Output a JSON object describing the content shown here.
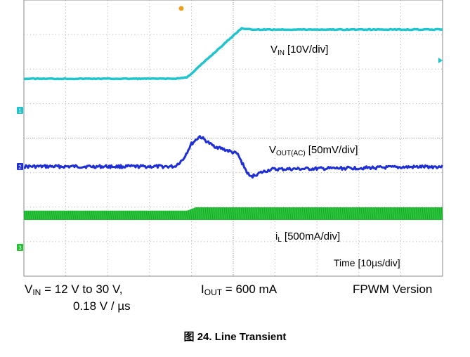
{
  "chart_data": {
    "type": "line",
    "x_unit": "µs",
    "x_range": [
      -19.5,
      30.5
    ],
    "grid": true,
    "divisions": {
      "x": 10,
      "y": 8
    },
    "channels": [
      {
        "id": "C1",
        "name": "VIN",
        "scale": "10V/div",
        "color": "#21c4cc",
        "marker": "1",
        "points": [
          [
            -19.5,
            12.5
          ],
          [
            -1.5,
            12.5
          ],
          [
            0,
            13
          ],
          [
            6.5,
            30.5
          ],
          [
            7.5,
            30
          ],
          [
            30.5,
            30
          ]
        ]
      },
      {
        "id": "C2",
        "name": "VOUT(AC)",
        "scale": "50mV/div",
        "color": "#1f2fd6",
        "marker": "2",
        "points": [
          [
            -19.5,
            0
          ],
          [
            -1.5,
            0
          ],
          [
            -0.5,
            10
          ],
          [
            0.5,
            32
          ],
          [
            1.5,
            43
          ],
          [
            3,
            30
          ],
          [
            5,
            22
          ],
          [
            6,
            18
          ],
          [
            7,
            -5
          ],
          [
            7.5,
            -15
          ],
          [
            8.5,
            -10
          ],
          [
            10,
            -4
          ],
          [
            16,
            -3
          ],
          [
            30.5,
            0
          ]
        ]
      },
      {
        "id": "C3",
        "name": "iL",
        "scale": "500mA/div",
        "color": "#20c232",
        "marker": "3",
        "band_low": [
          [
            -19.5,
            0
          ],
          [
            30.5,
            0
          ]
        ],
        "band_high": [
          [
            -19.5,
            110
          ],
          [
            0,
            110
          ],
          [
            1,
            150
          ],
          [
            30.5,
            150
          ]
        ]
      }
    ]
  },
  "labels": {
    "vin_main": "V",
    "vin_sub": "IN",
    "vin_scale": "[10V/div]",
    "vout_main": "V",
    "vout_sub": "OUT(AC)",
    "vout_scale": "[50mV/div]",
    "il_main": "i",
    "il_sub": "L",
    "il_scale": "[500mA/div]",
    "time": "Time [10µs/div]"
  },
  "captions": {
    "vin_main": "V",
    "vin_sub": "IN",
    "vin_rest": " = 12 V to 30 V,",
    "vin_line2": "0.18 V / µs",
    "iout_main": "I",
    "iout_sub": "OUT",
    "iout_rest": " = 600 mA",
    "version": "FPWM Version",
    "figure": "图 24. Line Transient"
  },
  "colors": {
    "trigger_marker": "#f0a020",
    "grid": "#9a9a9a"
  }
}
